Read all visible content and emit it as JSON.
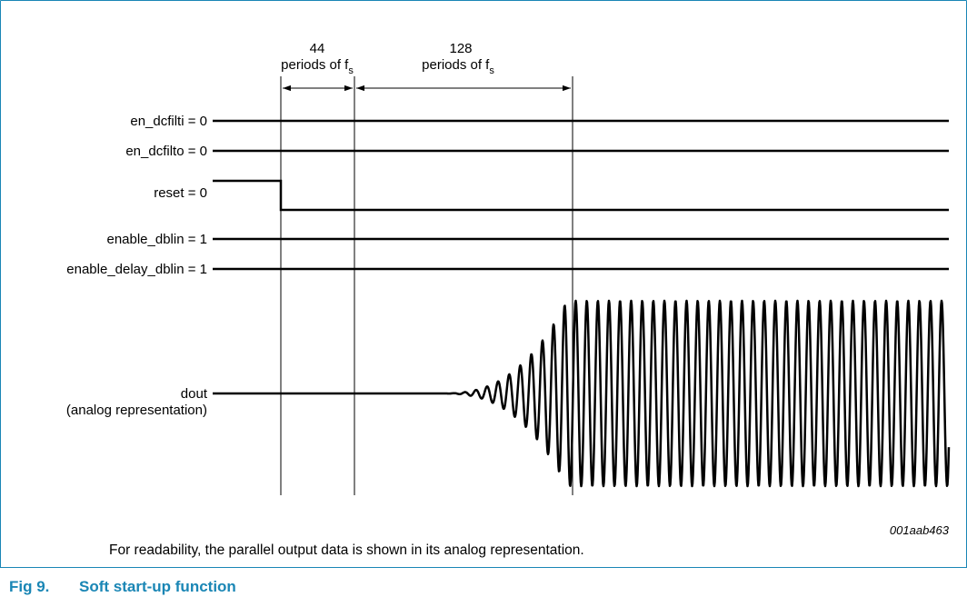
{
  "diagram": {
    "signals": [
      {
        "label": "en_dcfilti = 0"
      },
      {
        "label": "en_dcfilto = 0"
      },
      {
        "label": "reset = 0"
      },
      {
        "label": "enable_dblin = 1"
      },
      {
        "label": "enable_delay_dblin = 1"
      },
      {
        "label": "dout",
        "sublabel": "(analog representation)"
      }
    ],
    "intervals": [
      {
        "count": "44",
        "text": "periods of f",
        "subscript": "s"
      },
      {
        "count": "128",
        "text": "periods of f",
        "subscript": "s"
      }
    ],
    "figure_id": "001aab463"
  },
  "note": "For readability, the parallel output data is shown in its analog representation.",
  "caption": {
    "number": "Fig 9.",
    "title": "Soft start-up function"
  },
  "colors": {
    "frame": "#1a86b5",
    "caption": "#1a86b5",
    "line": "#000000"
  }
}
